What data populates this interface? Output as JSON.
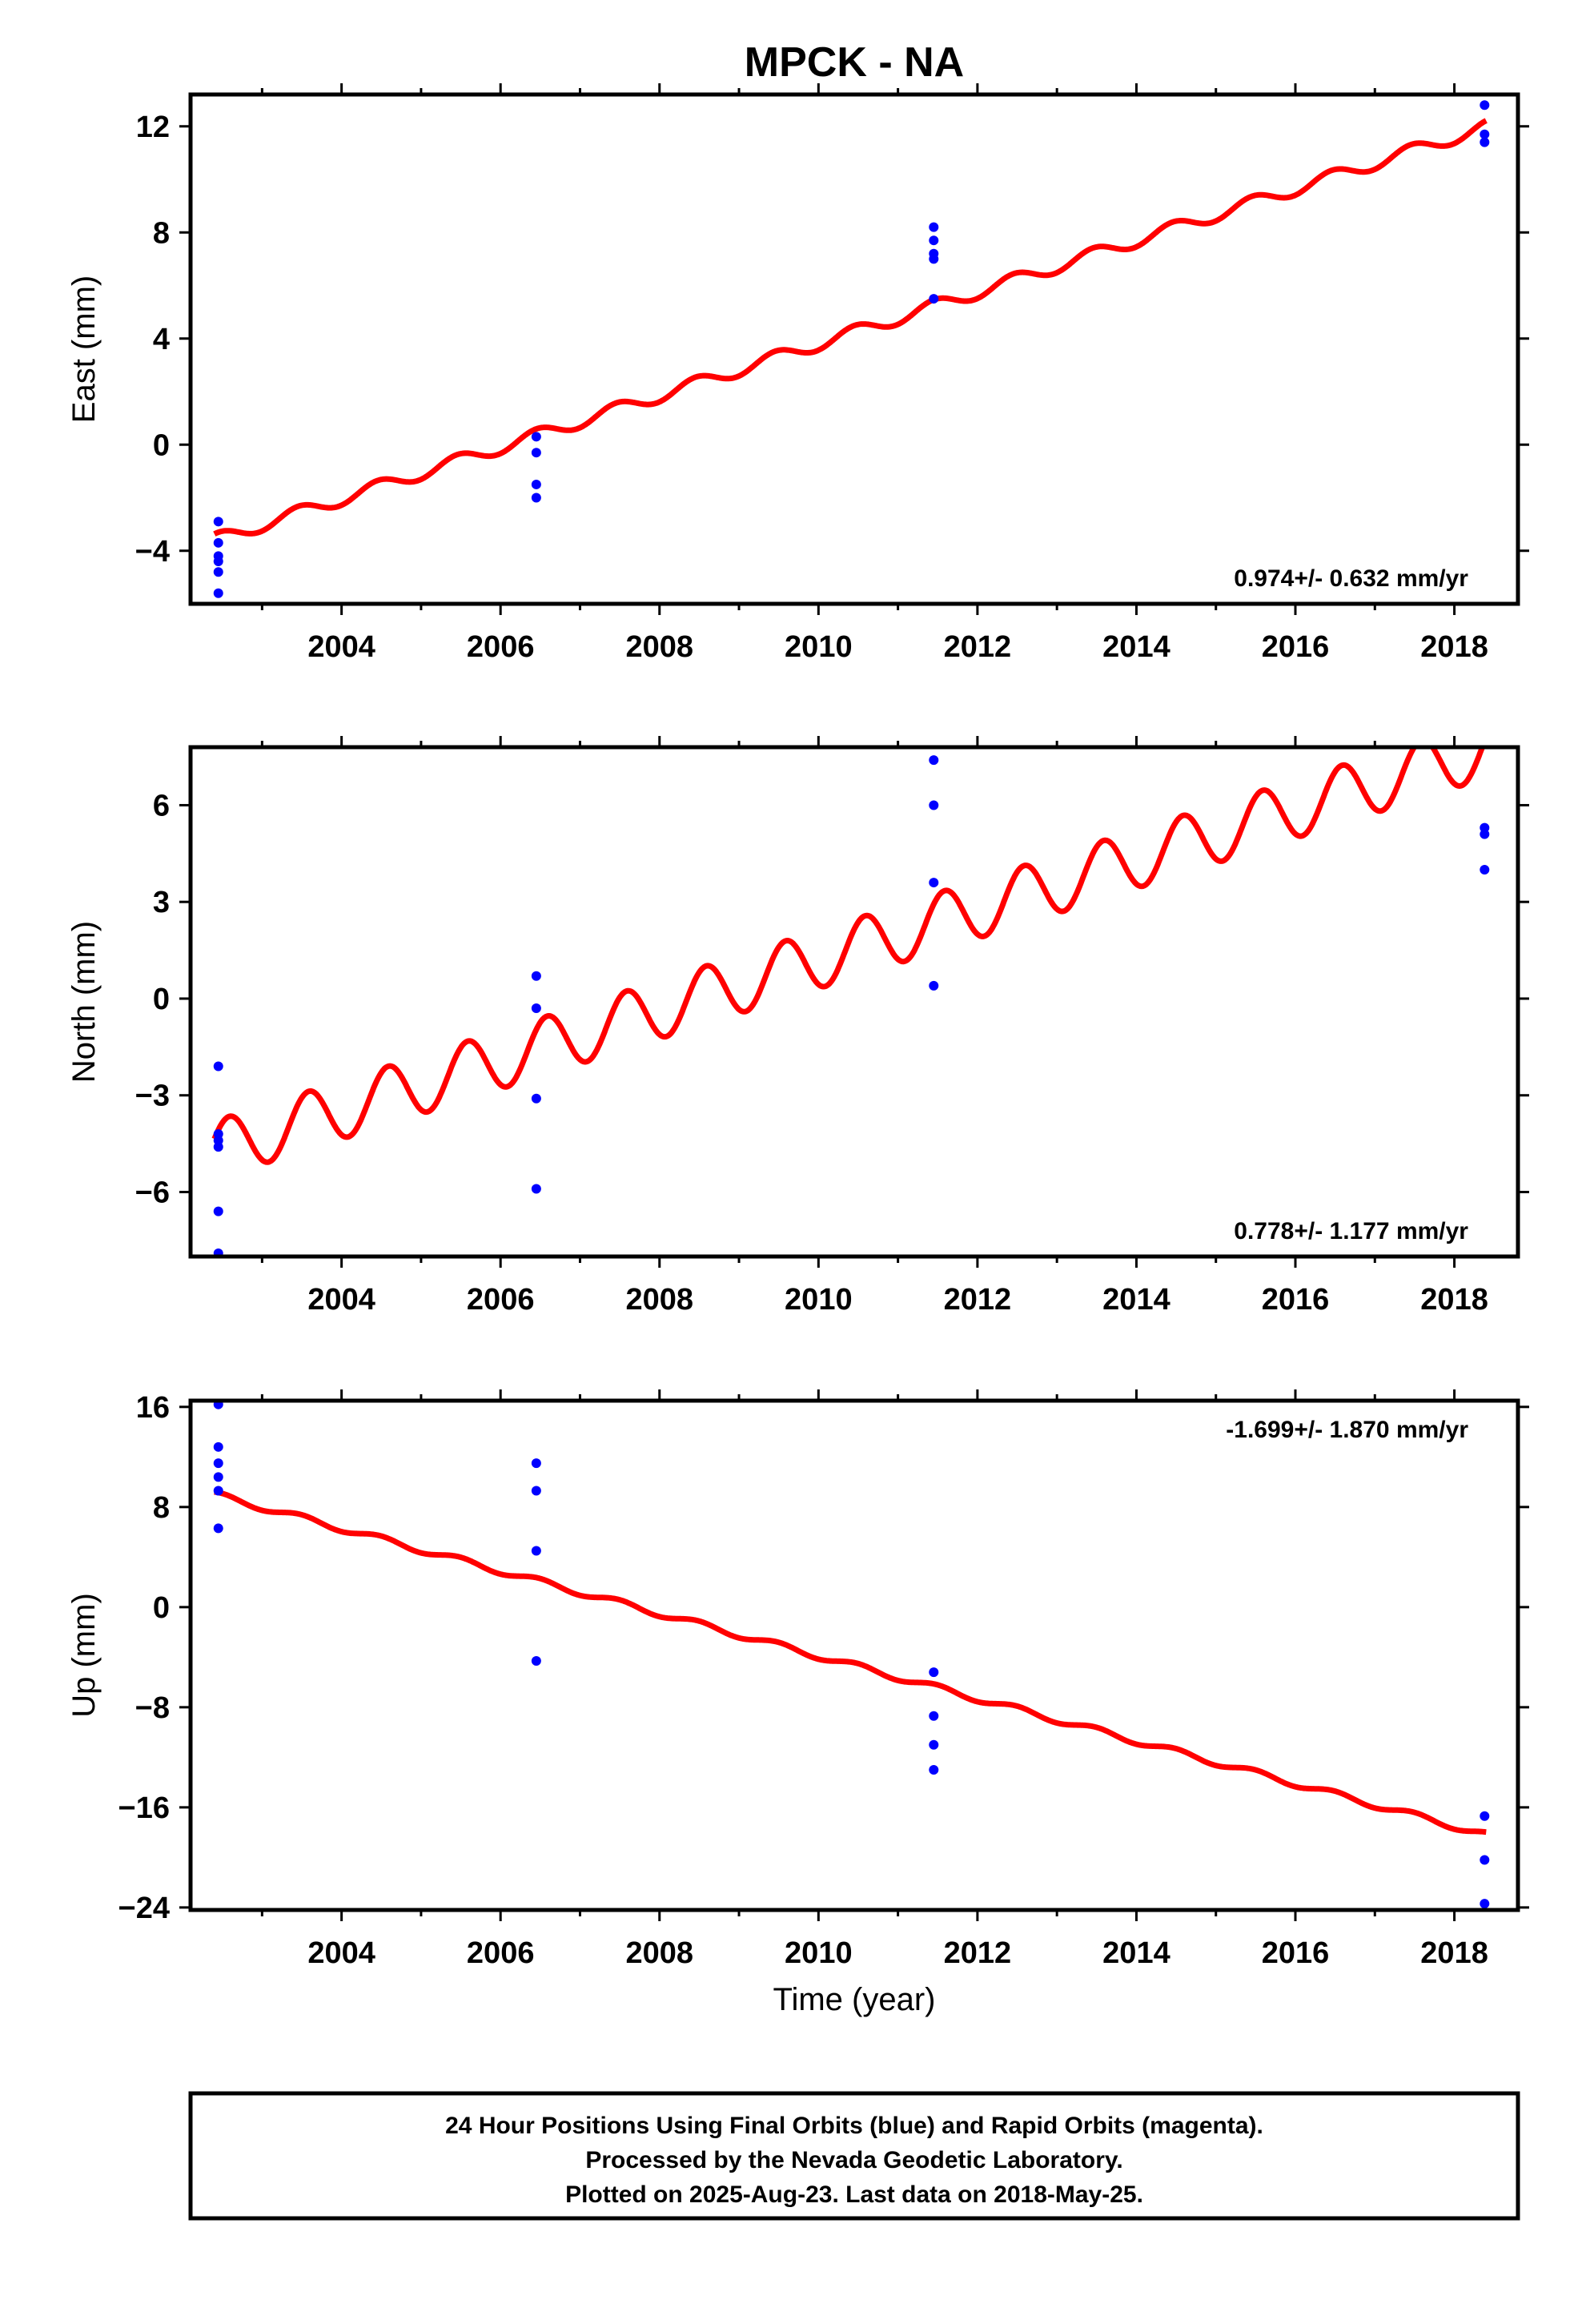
{
  "title": "MPCK - NA",
  "xlabel": "Time (year)",
  "footer": {
    "line1": "24 Hour Positions Using Final Orbits (blue) and Rapid Orbits (magenta).",
    "line2": "Processed by the Nevada Geodetic Laboratory.",
    "line3": "Plotted on 2025-Aug-23. Last data on 2018-May-25."
  },
  "colors": {
    "final_orbits": "#0000ff",
    "model": "#ff0000",
    "frame": "#000000"
  },
  "chart_data": [
    {
      "type": "scatter",
      "ylabel": "East (mm)",
      "rate_label": "0.974+/- 0.632 mm/yr",
      "xlim": [
        2002.1,
        2018.8
      ],
      "ylim": [
        -6.0,
        13.2
      ],
      "xticks": [
        2004,
        2006,
        2008,
        2010,
        2012,
        2014,
        2016,
        2018
      ],
      "yticks": [
        -4,
        0,
        4,
        8,
        12
      ],
      "ytick_labels": [
        "−4",
        "0",
        "4",
        "8",
        "12"
      ],
      "points": [
        [
          2002.45,
          -2.9
        ],
        [
          2002.45,
          -3.7
        ],
        [
          2002.45,
          -4.2
        ],
        [
          2002.45,
          -4.4
        ],
        [
          2002.45,
          -4.8
        ],
        [
          2002.45,
          -5.6
        ],
        [
          2006.45,
          0.3
        ],
        [
          2006.45,
          -0.3
        ],
        [
          2006.45,
          -1.5
        ],
        [
          2006.45,
          -2.0
        ],
        [
          2011.45,
          8.2
        ],
        [
          2011.45,
          7.7
        ],
        [
          2011.45,
          7.2
        ],
        [
          2011.45,
          7.0
        ],
        [
          2011.45,
          5.5
        ],
        [
          2018.38,
          12.8
        ],
        [
          2018.38,
          11.7
        ],
        [
          2018.38,
          11.4
        ]
      ],
      "model": {
        "t0": 2002.4,
        "y0": -3.6,
        "rate": 0.974,
        "annual_amp": 0.25,
        "annual_phase": 1.2,
        "t_end": 2018.4
      }
    },
    {
      "type": "scatter",
      "ylabel": "North (mm)",
      "rate_label": "0.778+/- 1.177 mm/yr",
      "xlim": [
        2002.1,
        2018.8
      ],
      "ylim": [
        -8.0,
        7.8
      ],
      "xticks": [
        2004,
        2006,
        2008,
        2010,
        2012,
        2014,
        2016,
        2018
      ],
      "yticks": [
        -6,
        -3,
        0,
        3,
        6
      ],
      "ytick_labels": [
        "−6",
        "−3",
        "0",
        "3",
        "6"
      ],
      "points": [
        [
          2002.45,
          -2.1
        ],
        [
          2002.45,
          -4.2
        ],
        [
          2002.45,
          -4.4
        ],
        [
          2002.45,
          -4.6
        ],
        [
          2002.45,
          -6.6
        ],
        [
          2002.45,
          -7.9
        ],
        [
          2006.45,
          0.7
        ],
        [
          2006.45,
          -0.3
        ],
        [
          2006.45,
          -3.1
        ],
        [
          2006.45,
          -5.9
        ],
        [
          2011.45,
          7.4
        ],
        [
          2011.45,
          6.0
        ],
        [
          2011.45,
          3.6
        ],
        [
          2011.45,
          0.4
        ],
        [
          2018.38,
          5.3
        ],
        [
          2018.38,
          5.1
        ],
        [
          2018.38,
          4.0
        ]
      ],
      "model": {
        "t0": 2002.4,
        "y0": -4.7,
        "rate": 0.778,
        "annual_amp": 0.9,
        "annual_phase": 0.4,
        "t_end": 2018.4
      }
    },
    {
      "type": "scatter",
      "ylabel": "Up (mm)",
      "rate_label": "-1.699+/- 1.870 mm/yr",
      "xlim": [
        2002.1,
        2018.8
      ],
      "ylim": [
        -24.2,
        16.5
      ],
      "xticks": [
        2004,
        2006,
        2008,
        2010,
        2012,
        2014,
        2016,
        2018
      ],
      "yticks": [
        -24,
        -16,
        -8,
        0,
        8,
        16
      ],
      "ytick_labels": [
        "−24",
        "−16",
        "−8",
        "0",
        "8",
        "16"
      ],
      "points": [
        [
          2002.45,
          16.2
        ],
        [
          2002.45,
          12.8
        ],
        [
          2002.45,
          11.5
        ],
        [
          2002.45,
          10.4
        ],
        [
          2002.45,
          9.3
        ],
        [
          2002.45,
          6.3
        ],
        [
          2006.45,
          11.5
        ],
        [
          2006.45,
          9.3
        ],
        [
          2006.45,
          4.5
        ],
        [
          2006.45,
          -4.3
        ],
        [
          2011.45,
          -5.2
        ],
        [
          2011.45,
          -8.7
        ],
        [
          2011.45,
          -11.0
        ],
        [
          2011.45,
          -13.0
        ],
        [
          2018.38,
          -16.7
        ],
        [
          2018.38,
          -20.2
        ],
        [
          2018.38,
          -23.7
        ]
      ],
      "model": {
        "t0": 2002.4,
        "y0": 9.0,
        "rate": -1.699,
        "annual_amp": 0.25,
        "annual_phase": 1.0,
        "t_end": 2018.4
      }
    }
  ]
}
